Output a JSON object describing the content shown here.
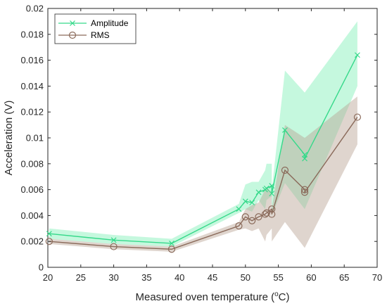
{
  "chart_data": {
    "type": "line",
    "xlabel": "Measured oven temperature (",
    "xlabel_unit_sup": "o",
    "xlabel_unit": "C)",
    "ylabel": "Acceleration (V)",
    "xlim": [
      20,
      70
    ],
    "ylim": [
      0,
      0.02
    ],
    "x_ticks": [
      "20",
      "25",
      "30",
      "35",
      "40",
      "45",
      "50",
      "55",
      "60",
      "65",
      "70"
    ],
    "y_ticks": [
      "0",
      "0.002",
      "0.004",
      "0.006",
      "0.008",
      "0.01",
      "0.012",
      "0.014",
      "0.016",
      "0.018",
      "0.02"
    ],
    "grid": false,
    "legend_position": "top-left",
    "series": [
      {
        "name": "Amplitude",
        "marker": "x",
        "color": "#35d98a",
        "band_color": "#7ff0b6",
        "x": [
          20.2,
          30,
          38.8,
          49,
          50,
          51,
          52,
          53,
          53.2,
          54,
          54,
          56,
          59,
          59,
          67
        ],
        "y": [
          0.0026,
          0.0021,
          0.00185,
          0.0045,
          0.0051,
          0.005,
          0.0058,
          0.006,
          0.0061,
          0.0063,
          0.0057,
          0.0106,
          0.0087,
          0.0084,
          0.0164
        ],
        "upper": [
          0.003,
          0.0025,
          0.0022,
          0.0049,
          0.0064,
          0.0066,
          0.0066,
          0.0075,
          0.008,
          0.008,
          0.006,
          0.0152,
          0.0135,
          0.0135,
          0.019
        ],
        "lower": [
          0.0022,
          0.0018,
          0.0016,
          0.0042,
          0.0045,
          0.0043,
          0.0052,
          0.0045,
          0.0052,
          0.0055,
          0.004,
          0.0065,
          0.0045,
          0.0045,
          0.014
        ]
      },
      {
        "name": "RMS",
        "marker": "o",
        "color": "#8a6a5a",
        "band_color": "#b9a293",
        "x": [
          20.2,
          30,
          38.8,
          49,
          50,
          51,
          52,
          53,
          53.2,
          54,
          54,
          56,
          59,
          59,
          67
        ],
        "y": [
          0.002,
          0.0016,
          0.0014,
          0.0032,
          0.0039,
          0.0036,
          0.0039,
          0.0041,
          0.0042,
          0.0045,
          0.0041,
          0.0075,
          0.006,
          0.0058,
          0.0116
        ],
        "upper": [
          0.0022,
          0.0018,
          0.0016,
          0.0035,
          0.0045,
          0.0048,
          0.005,
          0.006,
          0.0062,
          0.0058,
          0.0045,
          0.011,
          0.01,
          0.01,
          0.0132
        ],
        "lower": [
          0.0018,
          0.0014,
          0.0012,
          0.0029,
          0.003,
          0.0028,
          0.003,
          0.002,
          0.0025,
          0.003,
          0.002,
          0.0035,
          0.0015,
          0.0015,
          0.0095
        ]
      }
    ]
  }
}
